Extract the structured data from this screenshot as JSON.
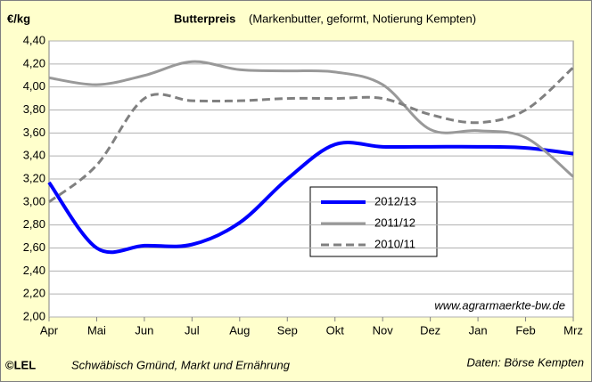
{
  "chart_data": {
    "type": "line",
    "title": "Butterpreis",
    "subtitle": "(Markenbutter, geformt, Notierung Kempten)",
    "y_label": "€/kg",
    "categories": [
      "Apr",
      "Mai",
      "Jun",
      "Jul",
      "Aug",
      "Sep",
      "Okt",
      "Nov",
      "Dez",
      "Jan",
      "Feb",
      "Mrz"
    ],
    "series": [
      {
        "name": "2012/13",
        "color": "#0000ff",
        "width": 4,
        "dash": false,
        "values": [
          3.17,
          2.6,
          2.62,
          2.63,
          2.82,
          3.2,
          3.5,
          3.48,
          3.48,
          3.48,
          3.47,
          3.42
        ]
      },
      {
        "name": "2011/12",
        "color": "#999999",
        "width": 3,
        "dash": false,
        "values": [
          4.08,
          4.02,
          4.1,
          4.22,
          4.15,
          4.14,
          4.13,
          4.02,
          3.63,
          3.62,
          3.56,
          3.22
        ]
      },
      {
        "name": "2010/11",
        "color": "#808080",
        "width": 3,
        "dash": true,
        "values": [
          3.0,
          3.32,
          3.9,
          3.88,
          3.88,
          3.9,
          3.9,
          3.9,
          3.76,
          3.69,
          3.8,
          4.17
        ]
      }
    ],
    "ylim": [
      2,
      4.4
    ],
    "yticks": [
      {
        "value": 2,
        "label": "2,00"
      },
      {
        "value": 2.2,
        "label": "2,20"
      },
      {
        "value": 2.4,
        "label": "2,40"
      },
      {
        "value": 2.6,
        "label": "2,60"
      },
      {
        "value": 2.8,
        "label": "2,80"
      },
      {
        "value": 3,
        "label": "3,00"
      },
      {
        "value": 3.2,
        "label": "3,20"
      },
      {
        "value": 3.4,
        "label": "3,40"
      },
      {
        "value": 3.6,
        "label": "3,60"
      },
      {
        "value": 3.8,
        "label": "3,80"
      },
      {
        "value": 4,
        "label": "4,00"
      },
      {
        "value": 4.2,
        "label": "4,20"
      },
      {
        "value": 4.4,
        "label": "4,40"
      }
    ],
    "grid": true,
    "source_url": "www.agrarmaerkte-bw.de",
    "logo": "©LEL",
    "footer_left": "Schwäbisch Gmünd, Markt und Ernährung",
    "footer_right": "Daten: Börse Kempten"
  }
}
